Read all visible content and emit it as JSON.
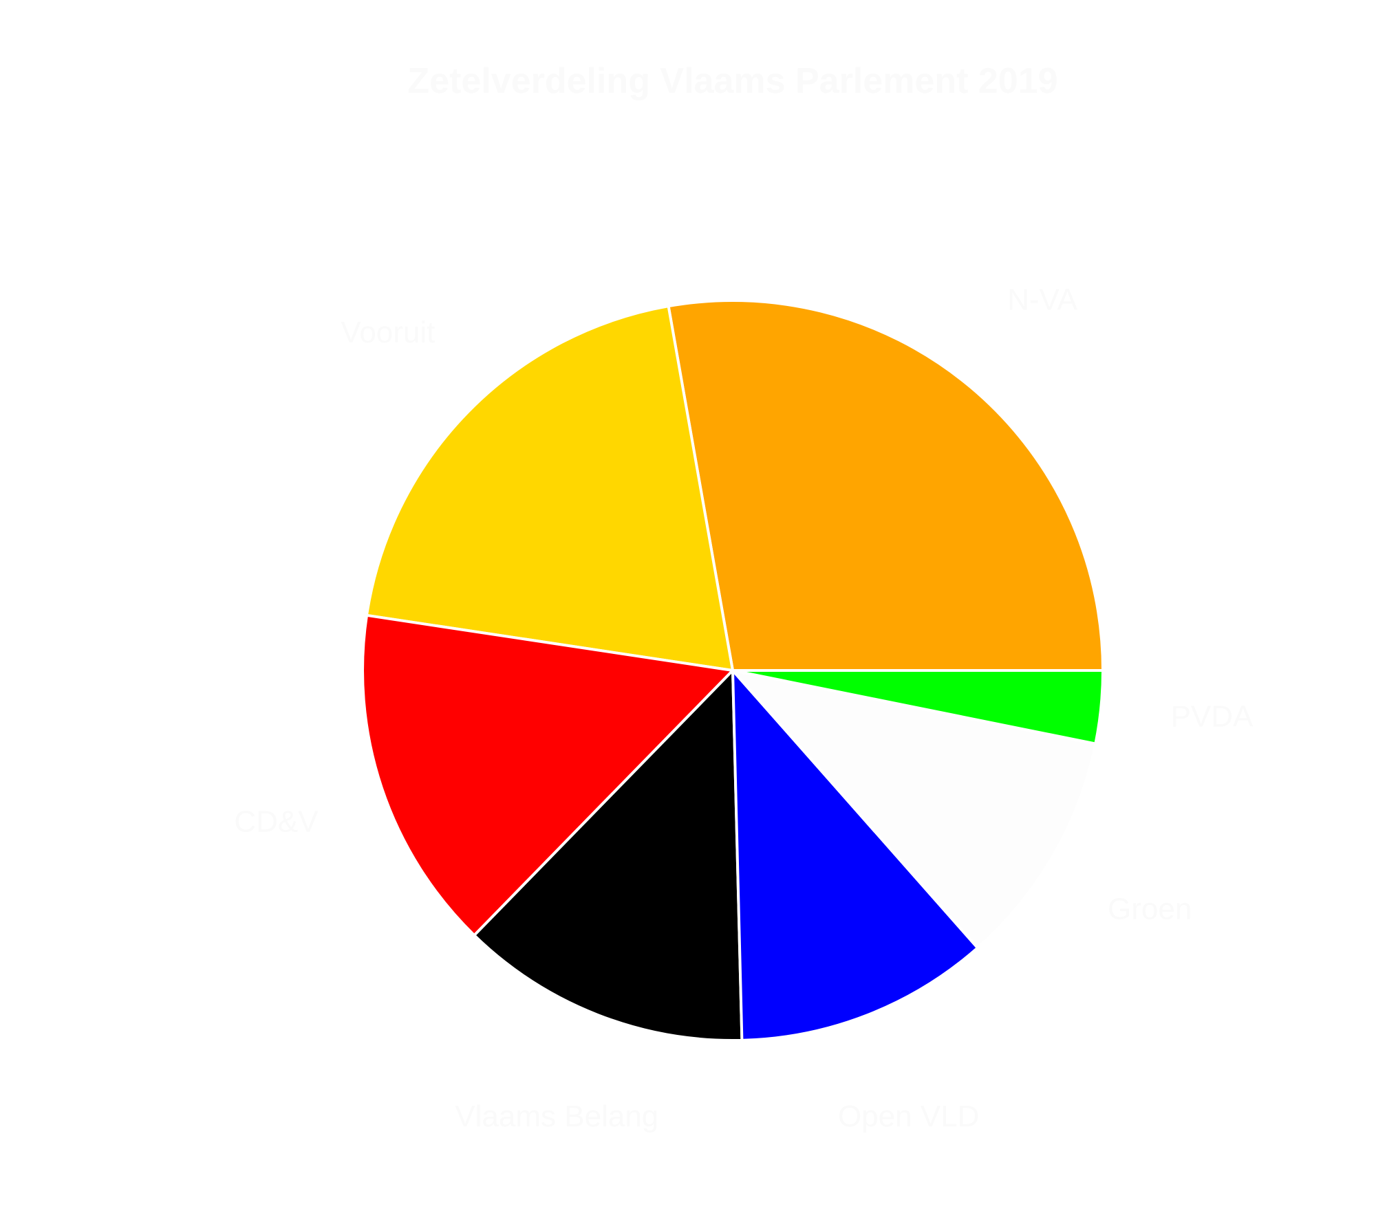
{
  "chart_data": {
    "type": "pie",
    "title": "Zetelverdeling Vlaams Parlement 2019",
    "slices": [
      {
        "label": "N-VA",
        "value": 35,
        "color": "#ffa500",
        "label_color": "#fafafa"
      },
      {
        "label": "Vooruit",
        "value": 25,
        "color": "#ffd700",
        "label_color": "#fafafa"
      },
      {
        "label": "CD&V",
        "value": 19,
        "color": "#ff0000",
        "label_color": "#fafafa"
      },
      {
        "label": "Vlaams Belang",
        "value": 16,
        "color": "#000000",
        "label_color": "#fafafa"
      },
      {
        "label": "Open VLD",
        "value": 14,
        "color": "#0000ff",
        "label_color": "#fafafa"
      },
      {
        "label": "Groen",
        "value": 13,
        "color": "#fdfdfd",
        "label_color": "#fafafa"
      },
      {
        "label": "PVDA",
        "value": 4,
        "color": "#00ff00",
        "label_color": "#fafafa"
      }
    ],
    "start_angle_deg": 0,
    "direction": "counterclockwise",
    "legend": "none"
  }
}
